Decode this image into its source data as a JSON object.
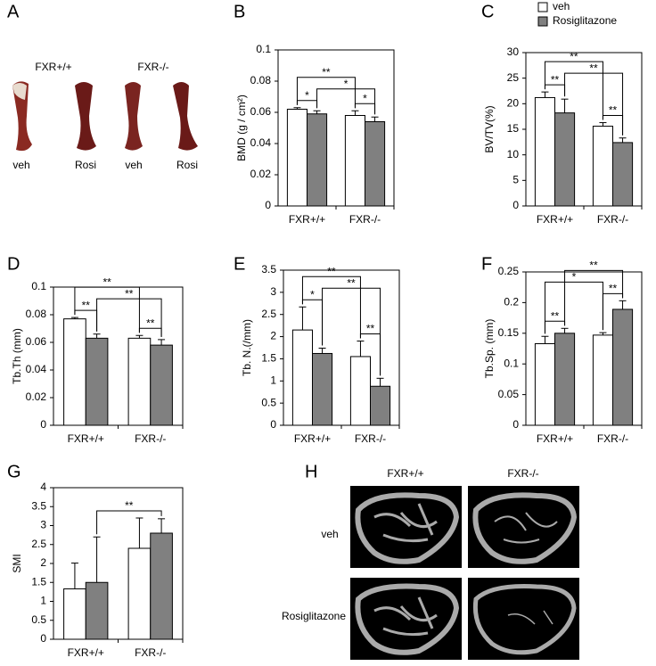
{
  "chart_data": [
    {
      "type": "bar",
      "panel": "B",
      "ylabel": "BMD (g / cm²)",
      "categories": [
        "FXR+/+",
        "FXR-/-"
      ],
      "series": [
        {
          "color": "#ffffff",
          "values": [
            0.062,
            0.058
          ],
          "errors": [
            0.001,
            0.003
          ]
        },
        {
          "color": "#808080",
          "values": [
            0.059,
            0.054
          ],
          "errors": [
            0.002,
            0.003
          ]
        }
      ],
      "ylim": [
        0,
        0.1
      ],
      "yticks": [
        0,
        0.02,
        0.04,
        0.06,
        0.08,
        0.1
      ],
      "brackets": [
        {
          "text": "*",
          "a": [
            0,
            0
          ],
          "b": [
            0,
            1
          ]
        },
        {
          "text": "*",
          "a": [
            1,
            0
          ],
          "b": [
            1,
            1
          ]
        },
        {
          "text": "*",
          "a": [
            0,
            1
          ],
          "b": [
            1,
            1
          ]
        },
        {
          "text": "**",
          "a": [
            0,
            0
          ],
          "b": [
            1,
            0
          ]
        }
      ]
    },
    {
      "type": "bar",
      "panel": "C",
      "ylabel": "BV/TV(%)",
      "categories": [
        "FXR+/+",
        "FXR-/-"
      ],
      "series": [
        {
          "name": "veh",
          "color": "#ffffff",
          "values": [
            21.2,
            15.6
          ],
          "errors": [
            1.1,
            0.7
          ]
        },
        {
          "name": "Rosiglitazone",
          "color": "#808080",
          "values": [
            18.2,
            12.4
          ],
          "errors": [
            2.7,
            0.9
          ]
        }
      ],
      "ylim": [
        0,
        30
      ],
      "yticks": [
        0,
        5,
        10,
        15,
        20,
        25,
        30
      ],
      "brackets": [
        {
          "text": "**",
          "a": [
            0,
            0
          ],
          "b": [
            0,
            1
          ]
        },
        {
          "text": "**",
          "a": [
            1,
            0
          ],
          "b": [
            1,
            1
          ]
        },
        {
          "text": "**",
          "a": [
            0,
            1
          ],
          "b": [
            1,
            1
          ]
        },
        {
          "text": "**",
          "a": [
            0,
            0
          ],
          "b": [
            1,
            0
          ]
        }
      ]
    },
    {
      "type": "bar",
      "panel": "D",
      "ylabel": "Tb.Th (mm)",
      "categories": [
        "FXR+/+",
        "FXR-/-"
      ],
      "series": [
        {
          "color": "#ffffff",
          "values": [
            0.077,
            0.063
          ],
          "errors": [
            0.001,
            0.002
          ]
        },
        {
          "color": "#808080",
          "values": [
            0.063,
            0.058
          ],
          "errors": [
            0.003,
            0.004
          ]
        }
      ],
      "ylim": [
        0,
        0.1
      ],
      "yticks": [
        0,
        0.02,
        0.04,
        0.06,
        0.08,
        0.1
      ],
      "brackets": [
        {
          "text": "**",
          "a": [
            0,
            0
          ],
          "b": [
            0,
            1
          ]
        },
        {
          "text": "**",
          "a": [
            1,
            0
          ],
          "b": [
            1,
            1
          ]
        },
        {
          "text": "**",
          "a": [
            0,
            1
          ],
          "b": [
            1,
            1
          ]
        },
        {
          "text": "**",
          "a": [
            0,
            0
          ],
          "b": [
            1,
            0
          ]
        }
      ]
    },
    {
      "type": "bar",
      "panel": "E",
      "ylabel": "Tb. N.(/mm)",
      "categories": [
        "FXR+/+",
        "FXR-/-"
      ],
      "series": [
        {
          "color": "#ffffff",
          "values": [
            2.15,
            1.55
          ],
          "errors": [
            0.52,
            0.35
          ]
        },
        {
          "color": "#808080",
          "values": [
            1.62,
            0.88
          ],
          "errors": [
            0.12,
            0.18
          ]
        }
      ],
      "ylim": [
        0,
        3.5
      ],
      "yticks": [
        0,
        0.5,
        1,
        1.5,
        2,
        2.5,
        3,
        3.5
      ],
      "brackets": [
        {
          "text": "*",
          "a": [
            0,
            0
          ],
          "b": [
            0,
            1
          ]
        },
        {
          "text": "**",
          "a": [
            1,
            0
          ],
          "b": [
            1,
            1
          ]
        },
        {
          "text": "**",
          "a": [
            0,
            1
          ],
          "b": [
            1,
            1
          ]
        },
        {
          "text": "**",
          "a": [
            0,
            0
          ],
          "b": [
            1,
            0
          ]
        }
      ]
    },
    {
      "type": "bar",
      "panel": "F",
      "ylabel": "Tb.Sp. (mm)",
      "categories": [
        "FXR+/+",
        "FXR-/-"
      ],
      "series": [
        {
          "color": "#ffffff",
          "values": [
            0.133,
            0.147
          ],
          "errors": [
            0.012,
            0.004
          ]
        },
        {
          "color": "#808080",
          "values": [
            0.15,
            0.189
          ],
          "errors": [
            0.008,
            0.014
          ]
        }
      ],
      "ylim": [
        0,
        0.25
      ],
      "yticks": [
        0,
        0.05,
        0.1,
        0.15,
        0.2,
        0.25
      ],
      "brackets": [
        {
          "text": "**",
          "a": [
            0,
            0
          ],
          "b": [
            0,
            1
          ]
        },
        {
          "text": "**",
          "a": [
            1,
            0
          ],
          "b": [
            1,
            1
          ]
        },
        {
          "text": "*",
          "a": [
            0,
            0
          ],
          "b": [
            1,
            0
          ]
        },
        {
          "text": "**",
          "a": [
            0,
            1
          ],
          "b": [
            1,
            1
          ]
        }
      ]
    },
    {
      "type": "bar",
      "panel": "G",
      "ylabel": "SMI",
      "categories": [
        "FXR+/+",
        "FXR-/-"
      ],
      "series": [
        {
          "color": "#ffffff",
          "values": [
            1.33,
            2.4
          ],
          "errors": [
            0.68,
            0.8
          ]
        },
        {
          "color": "#808080",
          "values": [
            1.5,
            2.8
          ],
          "errors": [
            1.2,
            0.38
          ]
        }
      ],
      "ylim": [
        0,
        4
      ],
      "yticks": [
        0,
        0.5,
        1,
        1.5,
        2,
        2.5,
        3,
        3.5,
        4
      ],
      "brackets": [
        {
          "text": "**",
          "a": [
            0,
            1
          ],
          "b": [
            1,
            1
          ]
        }
      ]
    }
  ],
  "photo_panels": [
    {
      "label": "A",
      "genotypes": [
        "FXR+/+",
        "FXR-/-"
      ],
      "treatments": [
        "veh",
        "Rosi",
        "veh",
        "Rosi"
      ]
    },
    {
      "label": "H",
      "genotypes": [
        "FXR+/+",
        "FXR-/-"
      ],
      "treatments": [
        "veh",
        "Rosiglitazone"
      ]
    }
  ]
}
